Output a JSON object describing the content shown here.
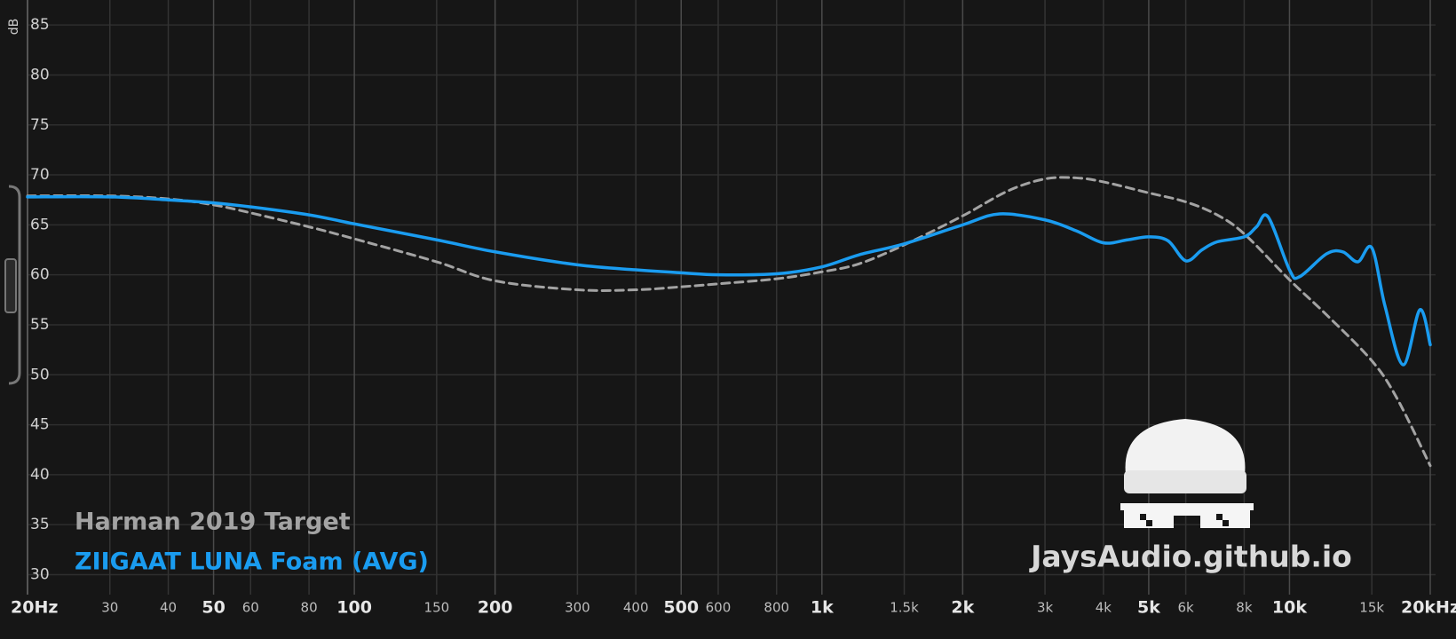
{
  "chart_data": {
    "type": "line",
    "y_label": "dB",
    "watermark": "JaysAudio.github.io",
    "log_x": true,
    "grid": true,
    "xlim": [
      20,
      20000
    ],
    "ylim": [
      28,
      87.5
    ],
    "yticks": [
      30,
      35,
      40,
      45,
      50,
      55,
      60,
      65,
      70,
      75,
      80,
      85
    ],
    "xticks": [
      {
        "value": 20,
        "label": "20Hz"
      },
      30,
      40,
      50,
      60,
      80,
      100,
      150,
      200,
      300,
      400,
      500,
      600,
      800,
      {
        "value": 1000,
        "label": "1k"
      },
      {
        "value": 1500,
        "label": "1.5k"
      },
      {
        "value": 2000,
        "label": "2k"
      },
      {
        "value": 3000,
        "label": "3k"
      },
      {
        "value": 4000,
        "label": "4k"
      },
      {
        "value": 5000,
        "label": "5k"
      },
      {
        "value": 6000,
        "label": "6k"
      },
      {
        "value": 8000,
        "label": "8k"
      },
      {
        "value": 10000,
        "label": "10k"
      },
      {
        "value": 15000,
        "label": "15k"
      },
      {
        "value": 20000,
        "label": "20kHz"
      }
    ],
    "series": [
      {
        "name": "Harman 2019 Target",
        "color": "#a3a3a3",
        "dashed": true,
        "x": [
          20,
          30,
          40,
          50,
          60,
          80,
          100,
          150,
          200,
          300,
          400,
          500,
          600,
          800,
          1000,
          1200,
          1500,
          2000,
          2500,
          3000,
          3500,
          4000,
          5000,
          6000,
          7000,
          8000,
          10000,
          12000,
          15000,
          17000,
          20000
        ],
        "values": [
          67.9,
          67.9,
          67.6,
          67.0,
          66.2,
          64.8,
          63.6,
          61.3,
          59.4,
          58.5,
          58.5,
          58.8,
          59.1,
          59.6,
          60.3,
          61.1,
          63.0,
          65.9,
          68.4,
          69.6,
          69.7,
          69.3,
          68.2,
          67.3,
          66.0,
          64.1,
          59.5,
          56.0,
          51.4,
          47.6,
          40.9
        ]
      },
      {
        "name": "ZIIGAAT LUNA Foam (AVG)",
        "color": "#1a9cf0",
        "dashed": false,
        "x": [
          20,
          30,
          40,
          50,
          60,
          80,
          100,
          150,
          200,
          300,
          400,
          500,
          600,
          800,
          1000,
          1200,
          1500,
          2000,
          2400,
          3000,
          3500,
          4000,
          4500,
          5000,
          5500,
          6000,
          6500,
          7000,
          8000,
          8500,
          9000,
          10000,
          10500,
          12000,
          13000,
          14000,
          15000,
          16000,
          17500,
          19000,
          20000
        ],
        "values": [
          67.8,
          67.8,
          67.5,
          67.2,
          66.8,
          66.0,
          65.1,
          63.5,
          62.3,
          61.0,
          60.5,
          60.2,
          60.0,
          60.1,
          60.8,
          62.0,
          63.1,
          65.0,
          66.1,
          65.5,
          64.4,
          63.2,
          63.5,
          63.8,
          63.4,
          61.4,
          62.5,
          63.3,
          63.8,
          64.8,
          65.8,
          60.5,
          59.8,
          62.1,
          62.3,
          61.3,
          62.7,
          56.9,
          51.0,
          56.5,
          53.0
        ]
      }
    ]
  }
}
